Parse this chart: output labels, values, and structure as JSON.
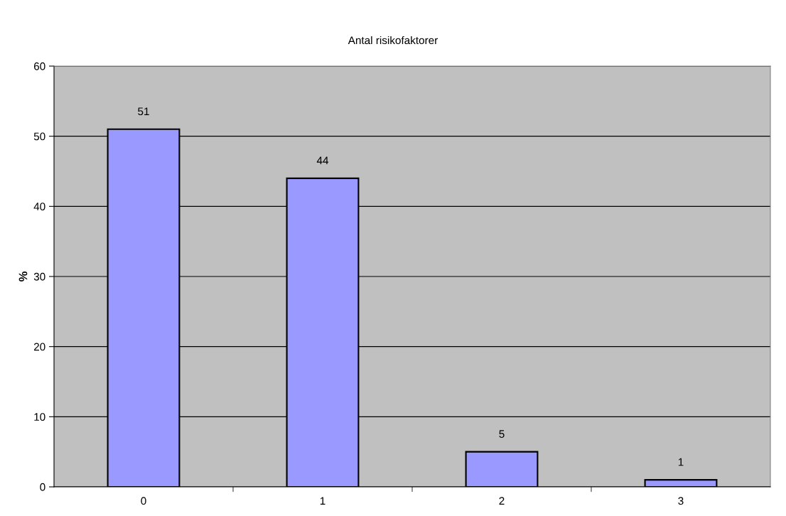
{
  "chart_data": {
    "type": "bar",
    "title": "Antal risikofaktorer",
    "ylabel": "%",
    "categories": [
      "0",
      "1",
      "2",
      "3"
    ],
    "values": [
      51,
      44,
      5,
      1
    ],
    "color": "#9999ff",
    "ylim": [
      0,
      60
    ],
    "yticks": [
      0,
      10,
      20,
      30,
      40,
      50,
      60
    ],
    "grid": "y",
    "data_labels": true,
    "legend": false
  }
}
